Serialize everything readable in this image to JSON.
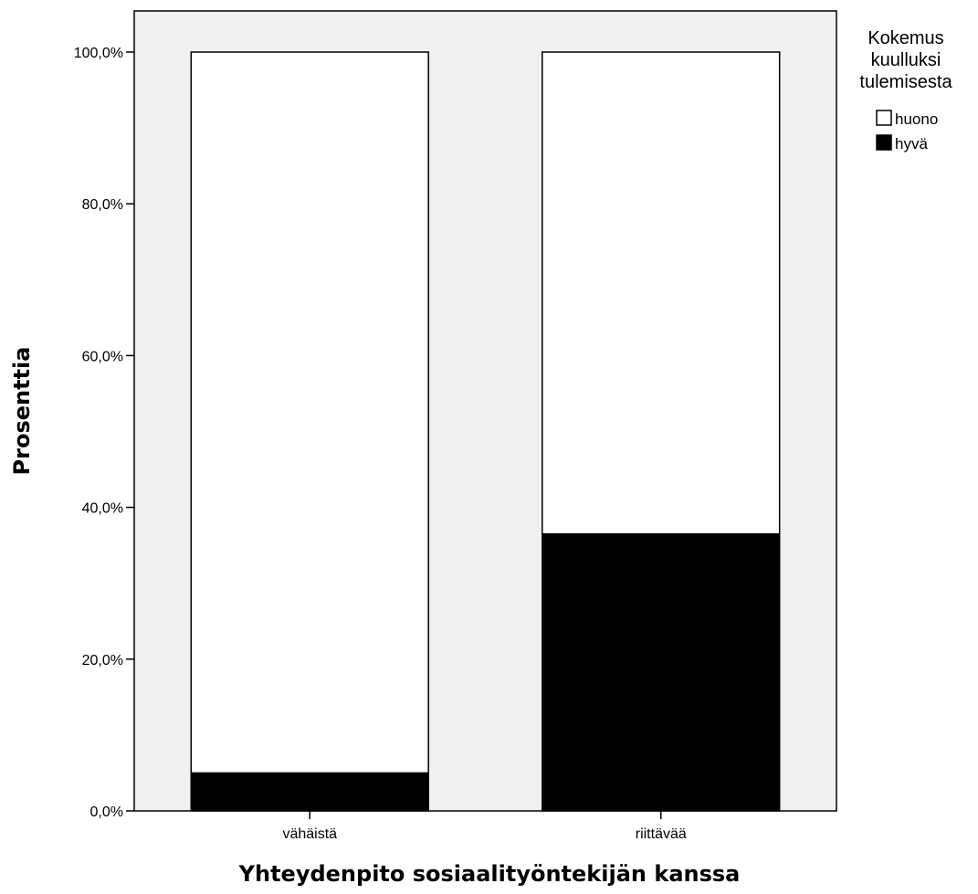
{
  "chart_data": {
    "type": "bar",
    "stacked": true,
    "categories": [
      "vähäistä",
      "riittävää"
    ],
    "series": [
      {
        "name": "hyvä",
        "values": [
          5.0,
          36.5
        ]
      },
      {
        "name": "huono",
        "values": [
          95.0,
          63.5
        ]
      }
    ],
    "xlabel": "Yhteydenpito sosiaalityöntekijän kanssa",
    "ylabel": "Prosenttia",
    "ylim": [
      0,
      100
    ],
    "yticks": [
      "0,0%",
      "20,0%",
      "40,0%",
      "60,0%",
      "80,0%",
      "100,0%"
    ],
    "legend_title": [
      "Kokemus",
      "kuulluksi",
      "tulemisesta"
    ],
    "legend_position": "top-right",
    "grid": false,
    "colors": {
      "huono": "#ffffff",
      "hyvä": "#000000",
      "plot_background": "#f0f0f0"
    }
  }
}
